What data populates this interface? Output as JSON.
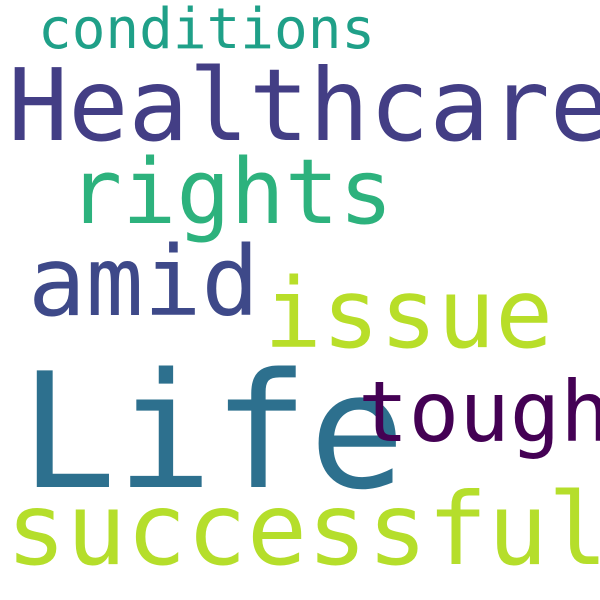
{
  "words": [
    {
      "id": "conditions",
      "text": "conditions",
      "color": "#1fa088"
    },
    {
      "id": "healthcare",
      "text": "Healthcare",
      "color": "#433e85"
    },
    {
      "id": "rights",
      "text": "rights",
      "color": "#2db27d"
    },
    {
      "id": "amid",
      "text": "amid",
      "color": "#3e4989"
    },
    {
      "id": "issue",
      "text": "issue",
      "color": "#b8de29"
    },
    {
      "id": "life",
      "text": "Life",
      "color": "#2d708e"
    },
    {
      "id": "tough",
      "text": "tough",
      "color": "#440154"
    },
    {
      "id": "successful",
      "text": "successful",
      "color": "#b5de2b"
    }
  ],
  "background": "#ffffff"
}
